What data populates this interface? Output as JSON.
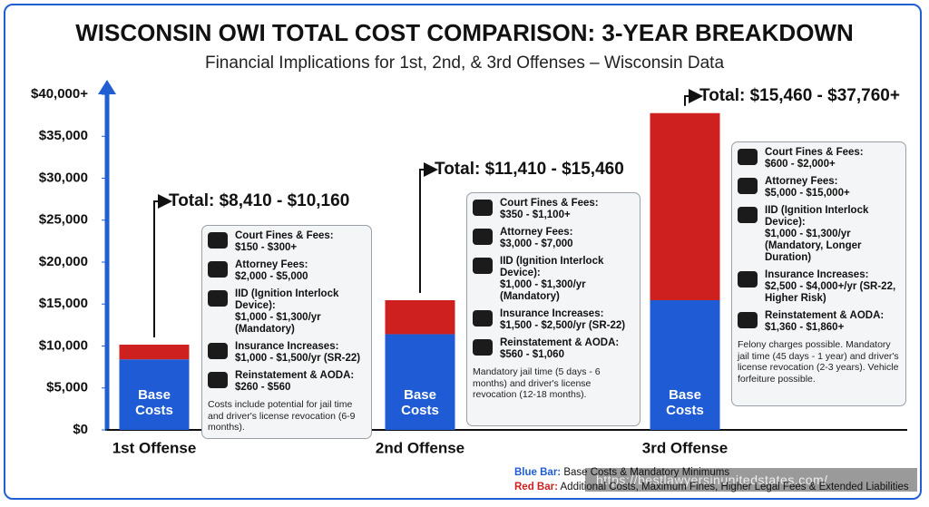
{
  "chart_data": {
    "type": "bar",
    "stacked": true,
    "title": "WISCONSIN OWI TOTAL COST COMPARISON: 3-YEAR BREAKDOWN",
    "subtitle": "Financial Implications for 1st, 2nd, & 3rd Offenses – Wisconsin Data",
    "categories": [
      "1st Offense",
      "2nd Offense",
      "3rd Offense"
    ],
    "bar_label": "Base Costs",
    "series": [
      {
        "name": "Base Costs & Mandatory Minimums",
        "legend_key": "Blue Bar:",
        "color": "#1f5bd4",
        "values": [
          8410,
          11410,
          15460
        ]
      },
      {
        "name": "Additional Costs, Maximum Fines, Higher Legal Fees & Extended Liabilities",
        "legend_key": "Red Bar:",
        "color": "#cf2020",
        "values": [
          1750,
          4050,
          22300
        ]
      }
    ],
    "ylim": [
      0,
      40000
    ],
    "yticks": [
      {
        "value": 0,
        "label": "$0"
      },
      {
        "value": 5000,
        "label": "$5,000"
      },
      {
        "value": 10000,
        "label": "$10,000"
      },
      {
        "value": 15000,
        "label": "$15,000"
      },
      {
        "value": 20000,
        "label": "$20,000"
      },
      {
        "value": 25000,
        "label": "$25,000"
      },
      {
        "value": 30000,
        "label": "$30,000"
      },
      {
        "value": 35000,
        "label": "$35,000"
      },
      {
        "value": 40000,
        "label": "$40,000+"
      }
    ],
    "grid": false,
    "details": [
      {
        "total": "Total: $8,410 - $10,160",
        "items": [
          {
            "label": "Court Fines & Fees:",
            "value": "$150 - $300+"
          },
          {
            "label": "Attorney Fees:",
            "value": "$2,000 - $5,000"
          },
          {
            "label": "IID (Ignition Interlock Device):",
            "value": "$1,000 - $1,300/yr (Mandatory)"
          },
          {
            "label": "Insurance Increases:",
            "value": "$1,000 - $1,500/yr (SR-22)"
          },
          {
            "label": "Reinstatement & AODA:",
            "value": "$260 - $560"
          }
        ],
        "note": "Costs include potential for jail time and driver's license revocation (6-9 months)."
      },
      {
        "total": "Total: $11,410 - $15,460",
        "items": [
          {
            "label": "Court Fines & Fees:",
            "value": "$350 - $1,100+"
          },
          {
            "label": "Attorney Fees:",
            "value": "$3,000 - $7,000"
          },
          {
            "label": "IID (Ignition Interlock Device):",
            "value": "$1,000 - $1,300/yr (Mandatory)"
          },
          {
            "label": "Insurance Increases:",
            "value": "$1,500 - $2,500/yr (SR-22)"
          },
          {
            "label": "Reinstatement & AODA:",
            "value": "$560 - $1,060"
          }
        ],
        "note": "Mandatory jail time (5 days - 6 months) and driver's license revocation (12-18 months)."
      },
      {
        "total": "Total: $15,460 - $37,760+",
        "items": [
          {
            "label": "Court Fines & Fees:",
            "value": "$600 - $2,000+"
          },
          {
            "label": "Attorney Fees:",
            "value": "$5,000 - $15,000+"
          },
          {
            "label": "IID (Ignition Interlock Device):",
            "value": "$1,000 - $1,300/yr (Mandatory, Longer Duration)"
          },
          {
            "label": "Insurance Increases:",
            "value": "$2,500 - $4,000+/yr (SR-22, Higher Risk)"
          },
          {
            "label": "Reinstatement & AODA:",
            "value": "$1,360 - $1,860+"
          }
        ],
        "note": "Felony charges possible. Mandatory jail time (45 days - 1 year) and driver's license revocation (2-3 years). Vehicle forfeiture possible."
      }
    ],
    "watermark": "https://bestlawyersinunitedstates.com/"
  }
}
